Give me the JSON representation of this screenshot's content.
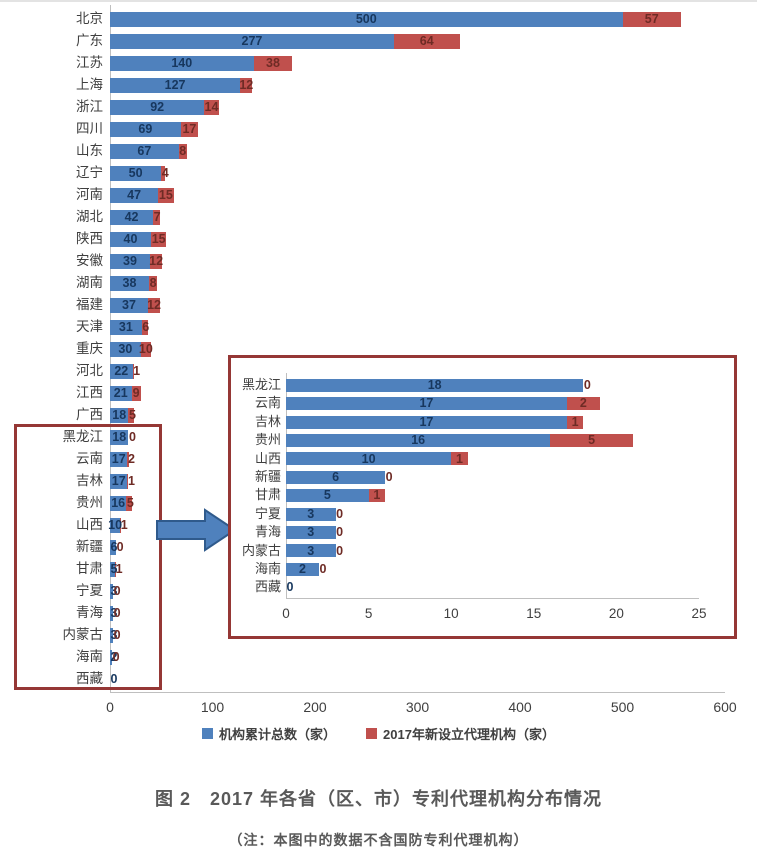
{
  "meta": {
    "caption": "图 2　2017 年各省（区、市）专利代理机构分布情况",
    "note": "（注：本图中的数据不含国防专利代理机构）"
  },
  "colors": {
    "total_bar": "#4F81BD",
    "new_bar": "#C0504D",
    "total_value_text": "#17375E",
    "new_value_text": "#6E2B25",
    "axis": "#BFBFBF",
    "highlight_border": "#953735",
    "arrow_fill": "#4F81BD",
    "arrow_stroke": "#2F5A8C"
  },
  "legend": {
    "items": [
      {
        "label": "机构累计总数（家）",
        "color": "#4F81BD"
      },
      {
        "label": "2017年新设立代理机构（家）",
        "color": "#C0504D"
      }
    ]
  },
  "annotations": {
    "highlight_box": "red outline around provinces 黑龙江 through 西藏 in main chart",
    "arrow": "blue block arrow pointing from highlighted provinces to inset zoom chart"
  },
  "chart_data": [
    {
      "id": "main",
      "type": "bar",
      "orientation": "horizontal",
      "stacked": true,
      "categories": [
        "北京",
        "广东",
        "江苏",
        "上海",
        "浙江",
        "四川",
        "山东",
        "辽宁",
        "河南",
        "湖北",
        "陕西",
        "安徽",
        "湖南",
        "福建",
        "天津",
        "重庆",
        "河北",
        "江西",
        "广西",
        "黑龙江",
        "云南",
        "吉林",
        "贵州",
        "山西",
        "新疆",
        "甘肃",
        "宁夏",
        "青海",
        "内蒙古",
        "海南",
        "西藏"
      ],
      "series": [
        {
          "name": "机构累计总数（家）",
          "color": "#4F81BD",
          "values": [
            500,
            277,
            140,
            127,
            92,
            69,
            67,
            50,
            47,
            42,
            40,
            39,
            38,
            37,
            31,
            30,
            22,
            21,
            18,
            18,
            17,
            17,
            16,
            10,
            6,
            5,
            3,
            3,
            3,
            2,
            0
          ]
        },
        {
          "name": "2017年新设立代理机构（家）",
          "color": "#C0504D",
          "values": [
            57,
            64,
            38,
            12,
            14,
            17,
            8,
            4,
            15,
            7,
            15,
            12,
            8,
            12,
            6,
            10,
            1,
            9,
            5,
            0,
            2,
            1,
            5,
            1,
            0,
            1,
            0,
            0,
            0,
            0,
            0
          ]
        }
      ],
      "xlim": [
        0,
        600
      ],
      "xticks": [
        0,
        100,
        200,
        300,
        400,
        500,
        600
      ],
      "grid": false,
      "legend_position": "bottom"
    },
    {
      "id": "inset",
      "type": "bar",
      "orientation": "horizontal",
      "stacked": true,
      "categories": [
        "黑龙江",
        "云南",
        "吉林",
        "贵州",
        "山西",
        "新疆",
        "甘肃",
        "宁夏",
        "青海",
        "内蒙古",
        "海南",
        "西藏"
      ],
      "series": [
        {
          "name": "机构累计总数（家）",
          "color": "#4F81BD",
          "values": [
            18,
            17,
            17,
            16,
            10,
            6,
            5,
            3,
            3,
            3,
            2,
            0
          ]
        },
        {
          "name": "2017年新设立代理机构（家）",
          "color": "#C0504D",
          "values": [
            0,
            2,
            1,
            5,
            1,
            0,
            1,
            0,
            0,
            0,
            0,
            0
          ]
        }
      ],
      "xlim": [
        0,
        25
      ],
      "xticks": [
        0,
        5,
        10,
        15,
        20,
        25
      ],
      "grid": false,
      "legend_position": "none"
    }
  ]
}
